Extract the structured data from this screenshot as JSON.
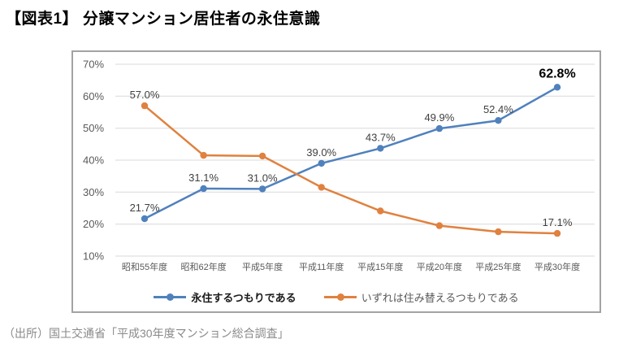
{
  "page": {
    "title": "【図表1】 分譲マンション居住者の永住意識",
    "source": "（出所）国土交通省「平成30年度マンション総合調査」"
  },
  "chart_data": {
    "type": "line",
    "title": "分譲マンション居住者の永住意識",
    "categories": [
      "昭和55年度",
      "昭和62年度",
      "平成5年度",
      "平成11年度",
      "平成15年度",
      "平成20年度",
      "平成25年度",
      "平成30年度"
    ],
    "series": [
      {
        "name": "永住するつもりである",
        "color": "#4f81bd",
        "values": [
          21.7,
          31.1,
          31.0,
          39.0,
          43.7,
          49.9,
          52.4,
          62.8
        ],
        "labels": [
          "21.7%",
          "31.1%",
          "31.0%",
          "39.0%",
          "43.7%",
          "49.9%",
          "52.4%",
          "62.8%"
        ],
        "emphasized_index": 7
      },
      {
        "name": "いずれは住み替えるつもりである",
        "color": "#e0813f",
        "values": [
          57.0,
          41.5,
          41.3,
          31.5,
          24.1,
          19.5,
          17.6,
          17.1
        ],
        "labels": [
          "57.0%",
          "",
          "",
          "",
          "",
          "",
          "",
          "17.1%"
        ],
        "emphasized_index": -1
      }
    ],
    "y_ticks": [
      {
        "value": 70,
        "label": "70%"
      },
      {
        "value": 60,
        "label": "60%"
      },
      {
        "value": 50,
        "label": "50%"
      },
      {
        "value": 40,
        "label": "40%"
      },
      {
        "value": 30,
        "label": "30%"
      },
      {
        "value": 20,
        "label": "20%"
      },
      {
        "value": 10,
        "label": "10%"
      }
    ],
    "ylim": [
      10,
      70
    ],
    "grid": true,
    "gridline_color": "#d9d9d9",
    "legend_position": "bottom"
  }
}
